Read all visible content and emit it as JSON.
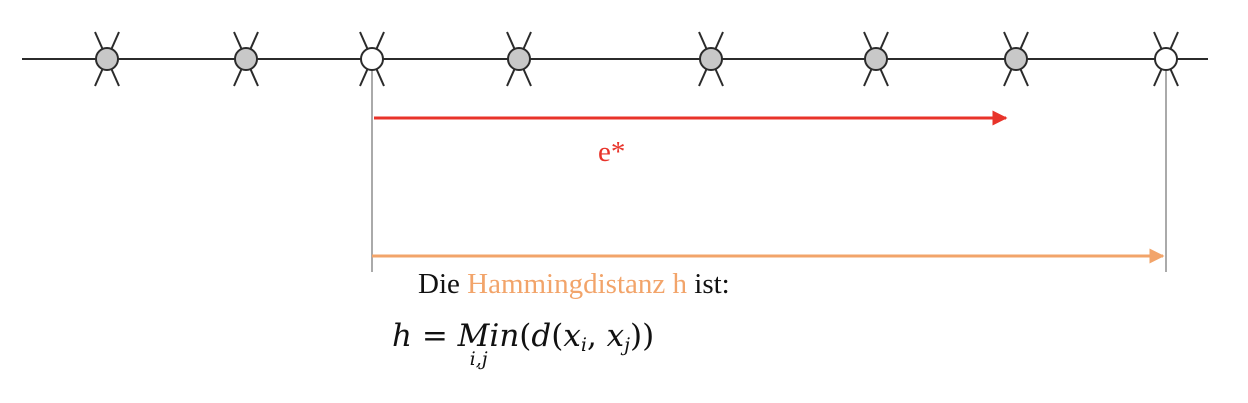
{
  "colors": {
    "line": "#2b2b2b",
    "node_filled": "#c8c8c8",
    "node_empty": "#ffffff",
    "guide": "#555555",
    "error_arrow": "#e8332a",
    "distance_arrow": "#f2a46a",
    "highlight_text": "#f2a46a"
  },
  "nodes": [
    {
      "type": "codeword"
    },
    {
      "type": "codeword"
    },
    {
      "type": "received"
    },
    {
      "type": "codeword"
    },
    {
      "type": "codeword"
    },
    {
      "type": "codeword"
    },
    {
      "type": "codeword"
    },
    {
      "type": "received"
    }
  ],
  "labels": {
    "error_label": "e*",
    "caption_prefix": "Die ",
    "caption_highlight": "Hammingdistanz h",
    "caption_suffix": " ist:"
  },
  "formula": {
    "lhs": "h",
    "equals": "=",
    "operator": "Min",
    "operator_sub": "i,j",
    "open": "(",
    "func": "d",
    "inner_open": "(",
    "x1": "x",
    "x1_sub": "i",
    "comma": ",",
    "x2": "x",
    "x2_sub": "j",
    "close": "))"
  }
}
